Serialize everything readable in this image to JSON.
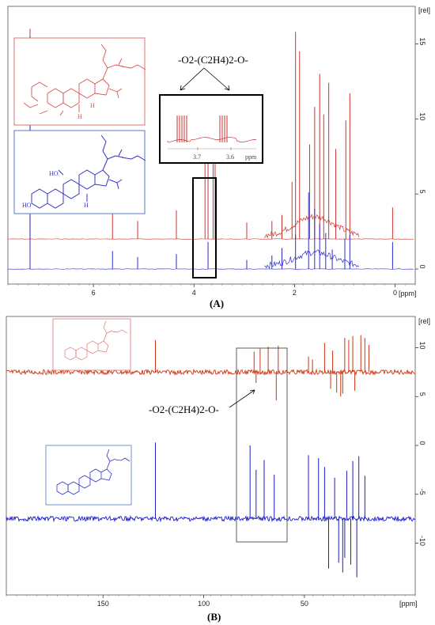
{
  "chart_data": [
    {
      "type": "line",
      "panel_label": "(A)",
      "xlabel": "[ppm]",
      "ylabel": "[rel]",
      "xlim": [
        7.7,
        -0.4
      ],
      "ylim": [
        -1.0,
        17.5
      ],
      "x_ticks": [
        6,
        4,
        2,
        0
      ],
      "y_ticks": [
        0,
        5,
        10,
        15
      ],
      "annotation": "-O2-(C2H4)2-O-",
      "inset_ticks": [
        "3.7",
        "3.6",
        "ppm"
      ],
      "series": [
        {
          "color": "#cc3333",
          "baseline": 2.0,
          "peaks": [
            {
              "x": 7.26,
              "y": 16.0
            },
            {
              "x": 5.62,
              "y": 3.8
            },
            {
              "x": 5.12,
              "y": 3.2
            },
            {
              "x": 4.35,
              "y": 3.9
            },
            {
              "x": 3.78,
              "y": 7.4
            },
            {
              "x": 3.72,
              "y": 7.4
            },
            {
              "x": 3.62,
              "y": 7.2
            },
            {
              "x": 3.58,
              "y": 7.2
            },
            {
              "x": 2.95,
              "y": 3.1
            },
            {
              "x": 2.45,
              "y": 3.2
            },
            {
              "x": 2.25,
              "y": 3.6
            },
            {
              "x": 2.05,
              "y": 5.8
            },
            {
              "x": 1.98,
              "y": 15.8
            },
            {
              "x": 1.9,
              "y": 14.5
            },
            {
              "x": 1.7,
              "y": 8.3
            },
            {
              "x": 1.6,
              "y": 10.8
            },
            {
              "x": 1.5,
              "y": 13.0
            },
            {
              "x": 1.42,
              "y": 10.3
            },
            {
              "x": 1.32,
              "y": 12.4
            },
            {
              "x": 1.18,
              "y": 8.0
            },
            {
              "x": 0.98,
              "y": 9.9
            },
            {
              "x": 0.9,
              "y": 11.7
            },
            {
              "x": 0.05,
              "y": 4.1
            }
          ]
        },
        {
          "color": "#2b2bcc",
          "baseline": 0.0,
          "peaks": [
            {
              "x": 7.26,
              "y": 15.5
            },
            {
              "x": 5.62,
              "y": 1.2
            },
            {
              "x": 5.12,
              "y": 0.8
            },
            {
              "x": 4.35,
              "y": 1.0
            },
            {
              "x": 3.72,
              "y": 1.8
            },
            {
              "x": 2.95,
              "y": 0.6
            },
            {
              "x": 2.45,
              "y": 0.9
            },
            {
              "x": 2.25,
              "y": 1.4
            },
            {
              "x": 1.98,
              "y": 2.3
            },
            {
              "x": 1.72,
              "y": 5.1
            },
            {
              "x": 1.6,
              "y": 4.0
            },
            {
              "x": 1.5,
              "y": 3.0
            },
            {
              "x": 1.38,
              "y": 2.4
            },
            {
              "x": 1.25,
              "y": 1.3
            },
            {
              "x": 1.0,
              "y": 2.0
            },
            {
              "x": 0.9,
              "y": 2.3
            },
            {
              "x": 0.05,
              "y": 1.8
            }
          ]
        }
      ]
    },
    {
      "type": "line",
      "panel_label": "(B)",
      "xlabel": "[ppm]",
      "ylabel": "[rel]",
      "xlim": [
        198,
        -5
      ],
      "ylim": [
        -15.3,
        13.2
      ],
      "x_ticks": [
        150,
        100,
        50
      ],
      "y_ticks": [
        10,
        5,
        0,
        -5,
        -10
      ],
      "annotation": "-O2-(C2H4)2-O-",
      "series": [
        {
          "color": "#cc3311",
          "baseline": 7.5,
          "peaks": [
            {
              "x": 124,
              "y": 10.8
            },
            {
              "x": 75,
              "y": 9.6
            },
            {
              "x": 72,
              "y": 9.9
            },
            {
              "x": 68,
              "y": 10.1
            },
            {
              "x": 63,
              "y": 10.2
            },
            {
              "x": 48,
              "y": 9.1
            },
            {
              "x": 46,
              "y": 8.8
            },
            {
              "x": 40,
              "y": 10.5
            },
            {
              "x": 36,
              "y": 9.7
            },
            {
              "x": 30,
              "y": 11.0
            },
            {
              "x": 28,
              "y": 10.8
            },
            {
              "x": 26,
              "y": 11.2
            },
            {
              "x": 22,
              "y": 11.3
            },
            {
              "x": 20,
              "y": 11.0
            },
            {
              "x": 18,
              "y": 10.3
            },
            {
              "x": 74,
              "y": 6.4
            },
            {
              "x": 64,
              "y": 4.6
            },
            {
              "x": 37,
              "y": 5.8
            },
            {
              "x": 34,
              "y": 5.4
            },
            {
              "x": 32,
              "y": 5.0
            },
            {
              "x": 31,
              "y": 5.3
            },
            {
              "x": 25,
              "y": 5.6
            }
          ]
        },
        {
          "color": "#1a1acc",
          "baseline": -7.5,
          "peaks": [
            {
              "x": 124,
              "y": 0.3
            },
            {
              "x": 77,
              "y": 0.0
            },
            {
              "x": 74,
              "y": -2.5
            },
            {
              "x": 70,
              "y": -1.5
            },
            {
              "x": 65,
              "y": -3.0
            },
            {
              "x": 48,
              "y": -1.0
            },
            {
              "x": 43,
              "y": -1.3
            },
            {
              "x": 40,
              "y": -2.2
            },
            {
              "x": 35,
              "y": -3.3
            },
            {
              "x": 29,
              "y": -2.6
            },
            {
              "x": 26,
              "y": -1.6
            },
            {
              "x": 23,
              "y": -1.1
            },
            {
              "x": 20,
              "y": -3.1
            },
            {
              "x": 38,
              "y": -12.6
            },
            {
              "x": 33,
              "y": -12.0
            },
            {
              "x": 31,
              "y": -13.0
            },
            {
              "x": 30,
              "y": -11.5
            },
            {
              "x": 27,
              "y": -12.2
            },
            {
              "x": 24,
              "y": -13.5
            }
          ]
        }
      ]
    }
  ],
  "structures": {
    "labels": [
      "HO",
      "HO",
      "H",
      "H",
      "H"
    ]
  },
  "colors": {
    "red_structure": "#d9534f",
    "blue_structure": "#3333cc",
    "red_border": "#e07070",
    "blue_border": "#5577cc"
  }
}
